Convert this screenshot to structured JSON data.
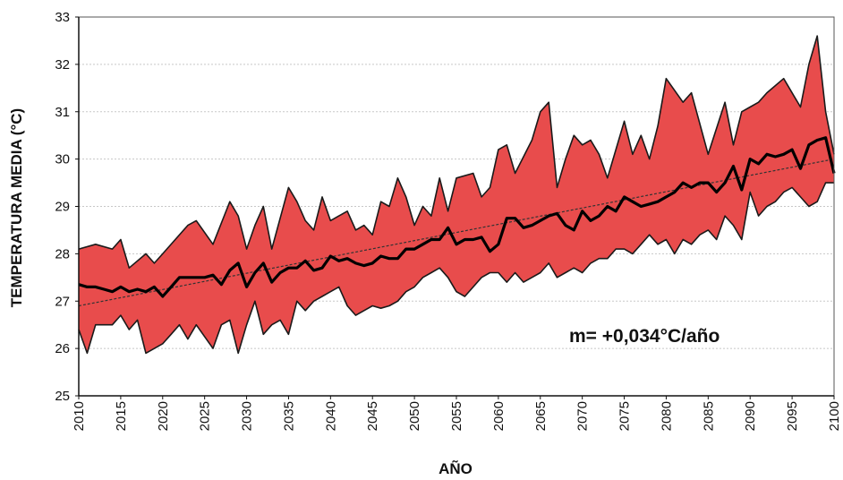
{
  "chart_data": {
    "type": "area",
    "title": "",
    "xlabel": "AÑO",
    "ylabel": "TEMPERATURA MEDIA (°C)",
    "xlim": [
      2010,
      2100
    ],
    "ylim": [
      25,
      33
    ],
    "xticks": [
      2010,
      2015,
      2020,
      2025,
      2030,
      2035,
      2040,
      2045,
      2050,
      2055,
      2060,
      2065,
      2070,
      2075,
      2080,
      2085,
      2090,
      2095,
      2100
    ],
    "yticks": [
      25,
      26,
      27,
      28,
      29,
      30,
      31,
      32,
      33
    ],
    "grid": true,
    "colors": {
      "band": "#e84c4c",
      "band_edge": "#1a1a1a",
      "mean_line": "#000000",
      "trend_line": "#333333",
      "grid": "#c8c8c8"
    },
    "annotation": "m= +0,034°C/año",
    "trend": {
      "slope": 0.034,
      "x": [
        2010,
        2100
      ],
      "y": [
        26.9,
        30.0
      ]
    },
    "series": [
      {
        "role": "upper",
        "x": [
          2010,
          2012,
          2014,
          2015,
          2016,
          2018,
          2019,
          2020,
          2023,
          2024,
          2026,
          2028,
          2029,
          2030,
          2031,
          2032,
          2033,
          2035,
          2036,
          2037,
          2038,
          2039,
          2040,
          2041,
          2042,
          2043,
          2044,
          2045,
          2046,
          2047,
          2048,
          2049,
          2050,
          2051,
          2052,
          2053,
          2054,
          2055,
          2057,
          2058,
          2059,
          2060,
          2061,
          2062,
          2064,
          2065,
          2066,
          2067,
          2068,
          2069,
          2070,
          2071,
          2072,
          2073,
          2074,
          2075,
          2076,
          2077,
          2078,
          2079,
          2080,
          2082,
          2083,
          2085,
          2087,
          2088,
          2089,
          2090,
          2091,
          2092,
          2094,
          2096,
          2097,
          2098,
          2099,
          2100
        ],
        "values": [
          28.1,
          28.2,
          28.1,
          28.3,
          27.7,
          28.0,
          27.8,
          28.0,
          28.6,
          28.7,
          28.2,
          29.1,
          28.8,
          28.1,
          28.6,
          29.0,
          28.1,
          29.4,
          29.1,
          28.7,
          28.5,
          29.2,
          28.7,
          28.8,
          28.9,
          28.5,
          28.6,
          28.4,
          29.1,
          29.0,
          29.6,
          29.2,
          28.6,
          29.0,
          28.8,
          29.6,
          28.9,
          29.6,
          29.7,
          29.2,
          29.4,
          30.2,
          30.3,
          29.7,
          30.4,
          31.0,
          31.2,
          29.4,
          30.0,
          30.5,
          30.3,
          30.4,
          30.1,
          29.6,
          30.2,
          30.8,
          30.1,
          30.5,
          30.0,
          30.7,
          31.7,
          31.2,
          31.4,
          30.1,
          31.2,
          30.3,
          31.0,
          31.1,
          31.2,
          31.4,
          31.7,
          31.1,
          32.0,
          32.6,
          31.0,
          30.1
        ]
      },
      {
        "role": "mean",
        "x": [
          2010,
          2011,
          2012,
          2013,
          2014,
          2015,
          2016,
          2017,
          2018,
          2019,
          2020,
          2021,
          2022,
          2023,
          2024,
          2025,
          2026,
          2027,
          2028,
          2029,
          2030,
          2031,
          2032,
          2033,
          2034,
          2035,
          2036,
          2037,
          2038,
          2039,
          2040,
          2041,
          2042,
          2043,
          2044,
          2045,
          2046,
          2047,
          2048,
          2049,
          2050,
          2051,
          2052,
          2053,
          2054,
          2055,
          2056,
          2057,
          2058,
          2059,
          2060,
          2061,
          2062,
          2063,
          2064,
          2065,
          2066,
          2067,
          2068,
          2069,
          2070,
          2071,
          2072,
          2073,
          2074,
          2075,
          2076,
          2077,
          2078,
          2079,
          2080,
          2081,
          2082,
          2083,
          2084,
          2085,
          2086,
          2087,
          2088,
          2089,
          2090,
          2091,
          2092,
          2093,
          2094,
          2095,
          2096,
          2097,
          2098,
          2099,
          2100
        ],
        "values": [
          27.35,
          27.3,
          27.3,
          27.25,
          27.2,
          27.3,
          27.2,
          27.25,
          27.2,
          27.3,
          27.1,
          27.3,
          27.5,
          27.5,
          27.5,
          27.5,
          27.55,
          27.35,
          27.65,
          27.8,
          27.3,
          27.6,
          27.8,
          27.4,
          27.6,
          27.7,
          27.7,
          27.85,
          27.65,
          27.7,
          27.95,
          27.85,
          27.9,
          27.8,
          27.75,
          27.8,
          27.95,
          27.9,
          27.9,
          28.1,
          28.1,
          28.2,
          28.3,
          28.3,
          28.55,
          28.2,
          28.3,
          28.3,
          28.35,
          28.05,
          28.2,
          28.75,
          28.75,
          28.55,
          28.6,
          28.7,
          28.8,
          28.85,
          28.6,
          28.5,
          28.9,
          28.7,
          28.8,
          29.0,
          28.9,
          29.2,
          29.1,
          29.0,
          29.05,
          29.1,
          29.2,
          29.3,
          29.5,
          29.4,
          29.5,
          29.5,
          29.3,
          29.5,
          29.85,
          29.35,
          30.0,
          29.9,
          30.1,
          30.05,
          30.1,
          30.2,
          29.8,
          30.3,
          30.4,
          30.45,
          29.7
        ]
      },
      {
        "role": "lower",
        "x": [
          2010,
          2011,
          2012,
          2014,
          2015,
          2016,
          2017,
          2018,
          2020,
          2021,
          2022,
          2023,
          2024,
          2026,
          2027,
          2028,
          2029,
          2030,
          2031,
          2032,
          2033,
          2034,
          2035,
          2036,
          2037,
          2038,
          2039,
          2040,
          2041,
          2042,
          2043,
          2044,
          2045,
          2046,
          2047,
          2048,
          2049,
          2050,
          2051,
          2052,
          2053,
          2054,
          2055,
          2056,
          2057,
          2058,
          2059,
          2060,
          2061,
          2062,
          2063,
          2064,
          2065,
          2066,
          2067,
          2068,
          2069,
          2070,
          2071,
          2072,
          2073,
          2074,
          2075,
          2076,
          2077,
          2078,
          2079,
          2080,
          2081,
          2082,
          2083,
          2084,
          2085,
          2086,
          2087,
          2088,
          2089,
          2090,
          2091,
          2092,
          2093,
          2094,
          2095,
          2096,
          2097,
          2098,
          2099,
          2100
        ],
        "values": [
          26.4,
          25.9,
          26.5,
          26.5,
          26.7,
          26.4,
          26.6,
          25.9,
          26.1,
          26.3,
          26.5,
          26.2,
          26.5,
          26.0,
          26.5,
          26.6,
          25.9,
          26.5,
          27.0,
          26.3,
          26.5,
          26.6,
          26.3,
          27.0,
          26.8,
          27.0,
          27.1,
          27.2,
          27.3,
          26.9,
          26.7,
          26.8,
          26.9,
          26.85,
          26.9,
          27.0,
          27.2,
          27.3,
          27.5,
          27.6,
          27.7,
          27.5,
          27.2,
          27.1,
          27.3,
          27.5,
          27.6,
          27.6,
          27.4,
          27.6,
          27.4,
          27.5,
          27.6,
          27.8,
          27.5,
          27.6,
          27.7,
          27.6,
          27.8,
          27.9,
          27.9,
          28.1,
          28.1,
          28.0,
          28.2,
          28.4,
          28.2,
          28.3,
          28.0,
          28.3,
          28.2,
          28.4,
          28.5,
          28.3,
          28.8,
          28.6,
          28.3,
          29.3,
          28.8,
          29.0,
          29.1,
          29.3,
          29.4,
          29.2,
          29.0,
          29.1,
          29.5,
          29.5
        ]
      }
    ]
  }
}
